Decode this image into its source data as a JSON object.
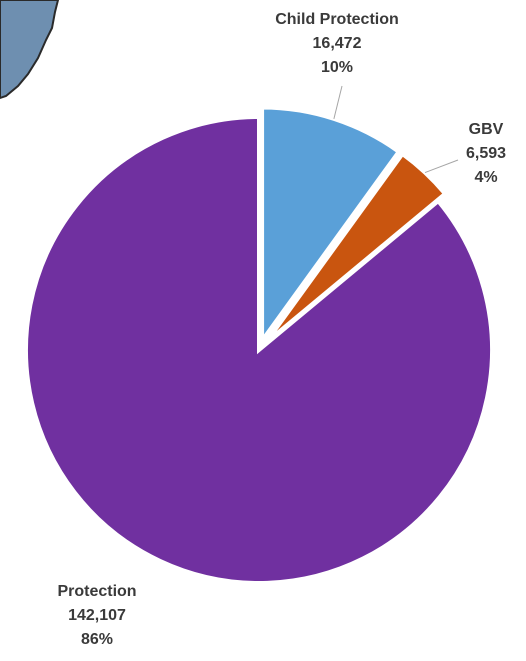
{
  "chart_data": {
    "type": "pie",
    "slices": [
      {
        "label": "Child Protection",
        "value": 16472,
        "value_label": "16,472",
        "percent_label": "10%",
        "color": "#5aa0d8"
      },
      {
        "label": "GBV",
        "value": 6593,
        "value_label": "6,593",
        "percent_label": "4%",
        "color": "#c9550f"
      },
      {
        "label": "Protection",
        "value": 142107,
        "value_label": "142,107",
        "percent_label": "86%",
        "color": "#7030a0"
      }
    ],
    "exploded_slices": [
      "Child Protection",
      "GBV"
    ],
    "start_angle": "12 o'clock",
    "direction": "clockwise",
    "legend": "none"
  },
  "map_fragment": {
    "fill": "#6e8fb0",
    "border": "#2a2a2a"
  }
}
